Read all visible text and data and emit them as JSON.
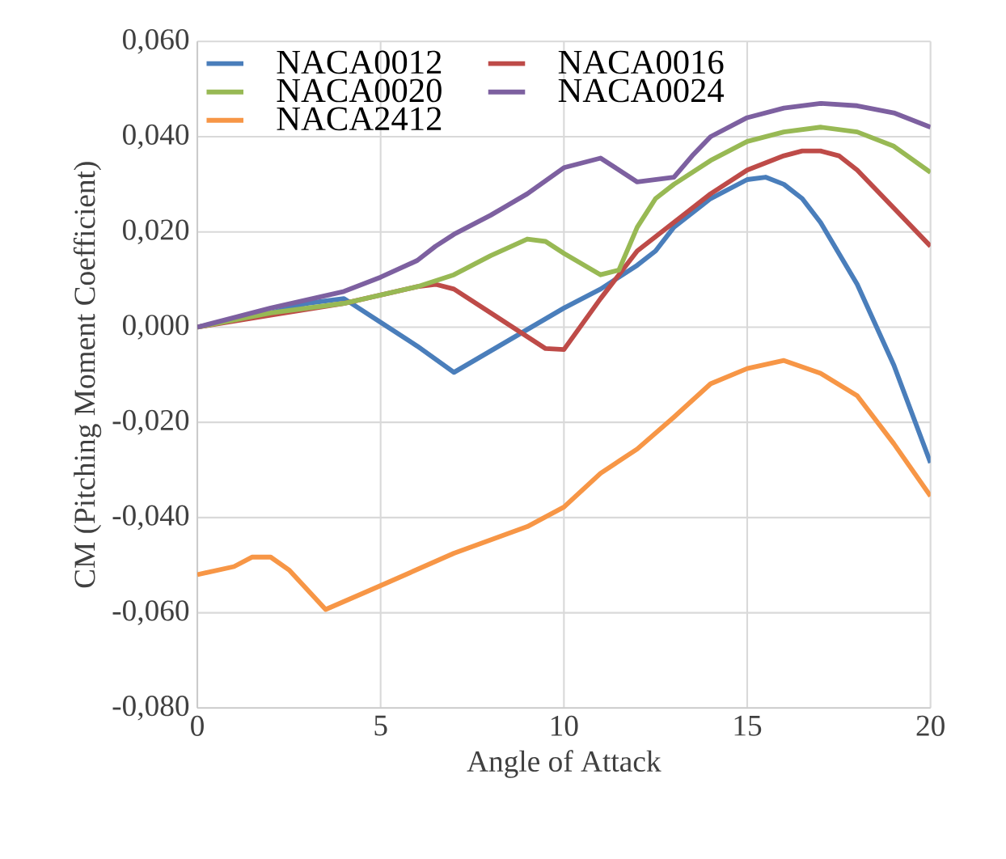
{
  "chart_data": {
    "type": "line",
    "xlabel": "Angle of Attack",
    "ylabel": "CM  (Pitching Moment Coefficient)",
    "xlim": [
      0,
      20
    ],
    "xticks": [
      0,
      5,
      10,
      15,
      20
    ],
    "ylim": [
      -0.08,
      0.06
    ],
    "yticks": [
      {
        "value": -0.08,
        "label": "-0,080"
      },
      {
        "value": -0.06,
        "label": "-0,060"
      },
      {
        "value": -0.04,
        "label": "-0,040"
      },
      {
        "value": -0.02,
        "label": "-0,020"
      },
      {
        "value": 0,
        "label": "0,000"
      },
      {
        "value": 0.02,
        "label": "0,020"
      },
      {
        "value": 0.04,
        "label": "0,040"
      },
      {
        "value": 0.06,
        "label": "0,060"
      }
    ],
    "grid": true,
    "legend": "top left",
    "marker": "none",
    "series": [
      {
        "name": "NACA0012",
        "color": "#4a7ebb",
        "x": [
          0,
          1,
          2,
          3,
          4,
          5,
          6,
          7,
          8,
          9,
          10,
          11,
          12,
          12.5,
          13,
          14,
          15,
          15.5,
          16,
          16.5,
          17,
          18,
          19,
          20
        ],
        "values": [
          0,
          0.0015,
          0.003,
          0.005,
          0.006,
          0.001,
          -0.004,
          -0.0095,
          -0.005,
          -0.0005,
          0.004,
          0.008,
          0.013,
          0.016,
          0.021,
          0.027,
          0.031,
          0.0315,
          0.03,
          0.027,
          0.022,
          0.009,
          -0.008,
          -0.0285
        ]
      },
      {
        "name": "NACA0016",
        "color": "#be4b48",
        "x": [
          0,
          2,
          4,
          6,
          6.5,
          7,
          8,
          9,
          9.5,
          10,
          11,
          12,
          13,
          14,
          15,
          16,
          16.5,
          17,
          17.5,
          18,
          18.5,
          19,
          20
        ],
        "values": [
          0,
          0.0025,
          0.005,
          0.0085,
          0.009,
          0.008,
          0.003,
          -0.002,
          -0.0045,
          -0.0047,
          0.006,
          0.016,
          0.022,
          0.028,
          0.033,
          0.036,
          0.037,
          0.037,
          0.036,
          0.033,
          0.029,
          0.025,
          0.017
        ]
      },
      {
        "name": "NACA0020",
        "color": "#98b954",
        "x": [
          0,
          2,
          4,
          6,
          7,
          8,
          9,
          9.5,
          10,
          11,
          11.5,
          12,
          12.5,
          13,
          14,
          15,
          16,
          17,
          18,
          19,
          20
        ],
        "values": [
          0,
          0.003,
          0.005,
          0.0085,
          0.011,
          0.015,
          0.0185,
          0.018,
          0.0155,
          0.011,
          0.012,
          0.021,
          0.027,
          0.03,
          0.035,
          0.039,
          0.041,
          0.042,
          0.041,
          0.038,
          0.0325
        ]
      },
      {
        "name": "NACA0024",
        "color": "#7d60a0",
        "x": [
          0,
          2,
          4,
          5,
          6,
          6.5,
          7,
          8,
          9,
          10,
          11,
          12,
          13,
          13.5,
          14,
          15,
          16,
          17,
          18,
          19,
          20
        ],
        "values": [
          0,
          0.004,
          0.0075,
          0.0105,
          0.014,
          0.017,
          0.0195,
          0.0235,
          0.028,
          0.0335,
          0.0355,
          0.0305,
          0.0315,
          0.036,
          0.04,
          0.044,
          0.046,
          0.047,
          0.0465,
          0.045,
          0.042
        ]
      },
      {
        "name": "NACA2412",
        "color": "#f79646",
        "x": [
          0,
          1,
          1.5,
          2,
          2.5,
          3.5,
          5,
          7,
          9,
          10,
          11,
          12,
          13,
          14,
          15,
          16,
          17,
          18,
          19,
          20
        ],
        "values": [
          -0.052,
          -0.0503,
          -0.0483,
          -0.0483,
          -0.051,
          -0.0593,
          -0.0543,
          -0.0475,
          -0.0419,
          -0.0378,
          -0.0307,
          -0.0256,
          -0.0189,
          -0.0119,
          -0.0087,
          -0.007,
          -0.0097,
          -0.0144,
          -0.0245,
          -0.0355
        ]
      }
    ]
  }
}
